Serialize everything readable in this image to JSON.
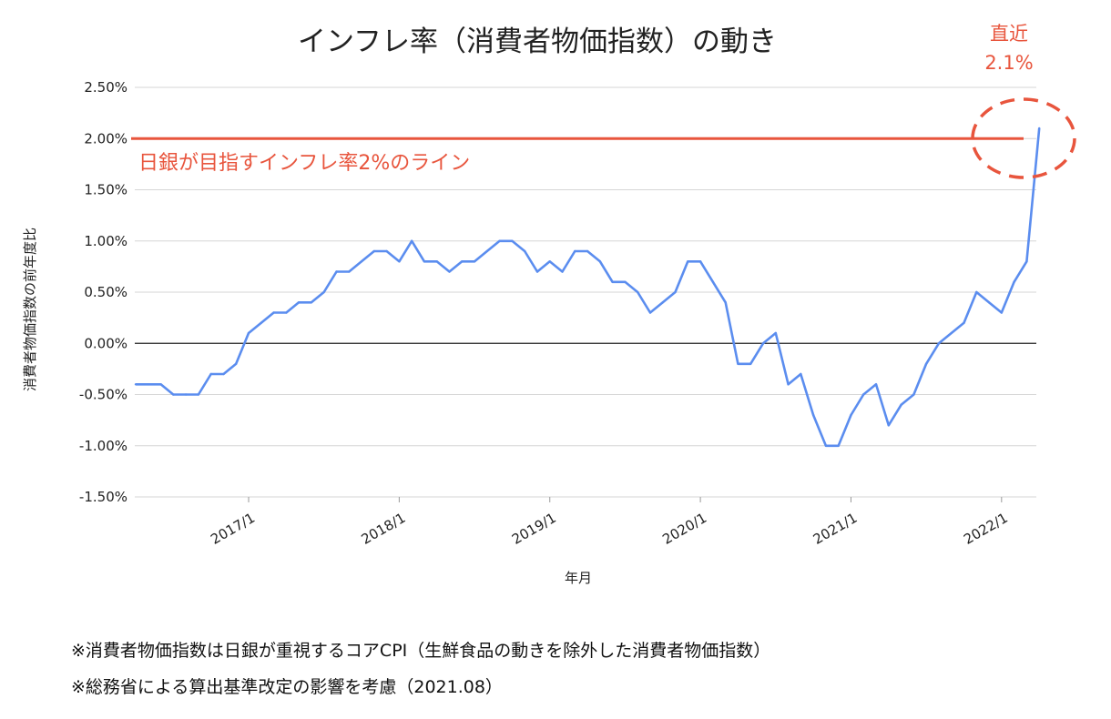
{
  "chart_data": {
    "type": "line",
    "title": "インフレ率（消費者物価指数）の動き",
    "xlabel": "年月",
    "ylabel": "消費者物価指数の前年度比",
    "ylim": [
      -1.5,
      2.5
    ],
    "y_ticks": [
      "2.50%",
      "2.00%",
      "1.50%",
      "1.00%",
      "0.50%",
      "0.00%",
      "-0.50%",
      "-1.00%",
      "-1.50%"
    ],
    "x_ticks": [
      "2017/1",
      "2018/1",
      "2019/1",
      "2020/1",
      "2021/1",
      "2022/1"
    ],
    "grid": true,
    "series": [
      {
        "color": "#5b8def",
        "x": [
          "2016/4",
          "2016/5",
          "2016/6",
          "2016/7",
          "2016/8",
          "2016/9",
          "2016/10",
          "2016/11",
          "2016/12",
          "2017/1",
          "2017/2",
          "2017/3",
          "2017/4",
          "2017/5",
          "2017/6",
          "2017/7",
          "2017/8",
          "2017/9",
          "2017/10",
          "2017/11",
          "2017/12",
          "2018/1",
          "2018/2",
          "2018/3",
          "2018/4",
          "2018/5",
          "2018/6",
          "2018/7",
          "2018/8",
          "2018/9",
          "2018/10",
          "2018/11",
          "2018/12",
          "2019/1",
          "2019/2",
          "2019/3",
          "2019/4",
          "2019/5",
          "2019/6",
          "2019/7",
          "2019/8",
          "2019/9",
          "2019/10",
          "2019/11",
          "2019/12",
          "2020/1",
          "2020/2",
          "2020/3",
          "2020/4",
          "2020/5",
          "2020/6",
          "2020/7",
          "2020/8",
          "2020/9",
          "2020/10",
          "2020/11",
          "2020/12",
          "2021/1",
          "2021/2",
          "2021/3",
          "2021/4",
          "2021/5",
          "2021/6",
          "2021/7",
          "2021/8",
          "2021/9",
          "2021/10",
          "2021/11",
          "2021/12",
          "2022/1",
          "2022/2",
          "2022/3",
          "2022/4"
        ],
        "values": [
          -0.4,
          -0.4,
          -0.4,
          -0.5,
          -0.5,
          -0.5,
          -0.3,
          -0.3,
          -0.2,
          0.1,
          0.2,
          0.3,
          0.3,
          0.4,
          0.4,
          0.5,
          0.7,
          0.7,
          0.8,
          0.9,
          0.9,
          0.8,
          1.0,
          0.8,
          0.8,
          0.7,
          0.8,
          0.8,
          0.9,
          1.0,
          1.0,
          0.9,
          0.7,
          0.8,
          0.7,
          0.9,
          0.9,
          0.8,
          0.6,
          0.6,
          0.5,
          0.3,
          0.4,
          0.5,
          0.8,
          0.8,
          0.6,
          0.4,
          -0.2,
          -0.2,
          0.0,
          0.1,
          -0.4,
          -0.3,
          -0.7,
          -1.0,
          -1.0,
          -0.7,
          -0.5,
          -0.4,
          -0.8,
          -0.6,
          -0.5,
          -0.2,
          0.0,
          0.1,
          0.2,
          0.5,
          0.4,
          0.3,
          0.6,
          0.8,
          2.1
        ]
      }
    ],
    "reference_line": {
      "value": 2.0,
      "label": "日銀が目指すインフレ率2%のライン",
      "color": "#e8553d"
    },
    "annotation": {
      "line1": "直近",
      "line2": "2.1%",
      "color": "#e8553d"
    }
  },
  "notes": [
    "※消費者物価指数は日銀が重視するコアCPI（生鮮食品の動きを除外した消費者物価指数）",
    "※総務省による算出基準改定の影響を考慮（2021.08）"
  ]
}
